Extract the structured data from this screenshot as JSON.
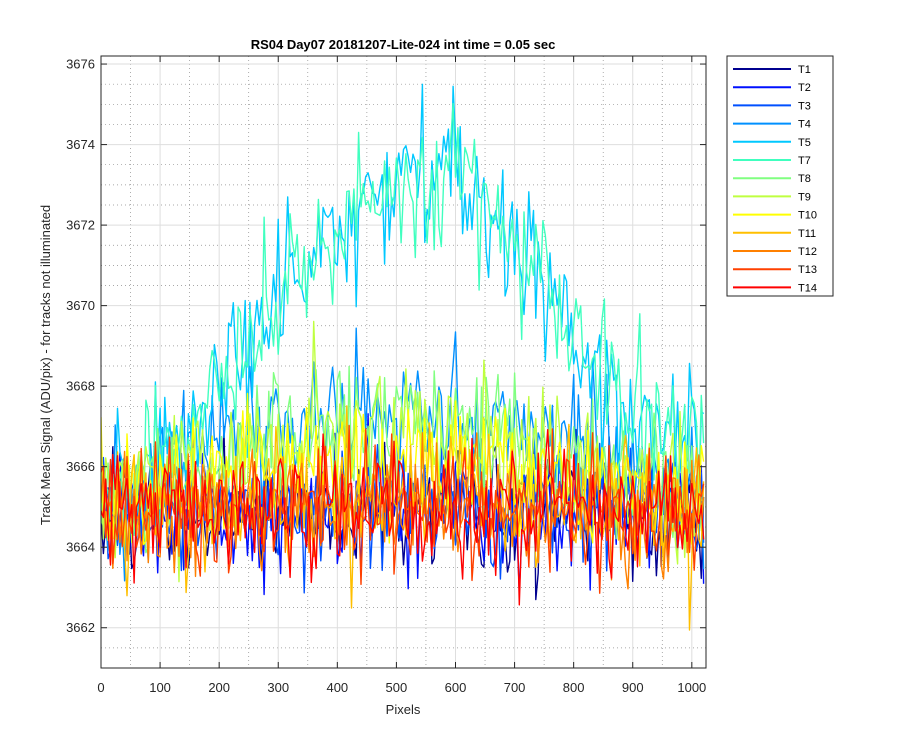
{
  "chart_data": {
    "type": "line",
    "title": "RS04 Day07 20181207-Lite-024 int time = 0.05 sec",
    "xlabel": "Pixels",
    "ylabel": "Track Mean Signal (ADU/pix) - for tracks not illuminated",
    "xlim": [
      0,
      1024
    ],
    "ylim": [
      3661,
      3676.2
    ],
    "x_ticks": [
      0,
      100,
      200,
      300,
      400,
      500,
      600,
      700,
      800,
      900,
      1000
    ],
    "y_ticks": [
      3662,
      3664,
      3666,
      3668,
      3670,
      3672,
      3674,
      3676
    ],
    "grid": true,
    "minor_grid": true,
    "legend_position": "outside-top-right",
    "x_sampling": "0 to 1023 every 4 pixels",
    "series": [
      {
        "name": "T1",
        "color": "#00008f",
        "mean": [
          [
            0,
            3664.9
          ],
          [
            1023,
            3664.9
          ]
        ],
        "noise": 0.9
      },
      {
        "name": "T2",
        "color": "#0010ff",
        "mean": [
          [
            0,
            3664.9
          ],
          [
            1023,
            3664.9
          ]
        ],
        "noise": 0.9
      },
      {
        "name": "T3",
        "color": "#0050ff",
        "mean": [
          [
            0,
            3665.0
          ],
          [
            1023,
            3665.0
          ]
        ],
        "noise": 0.9
      },
      {
        "name": "T4",
        "color": "#0090ff",
        "mean": [
          [
            0,
            3665.0
          ],
          [
            150,
            3666.0
          ],
          [
            250,
            3667.0
          ],
          [
            500,
            3667.3
          ],
          [
            750,
            3667.0
          ],
          [
            900,
            3666.0
          ],
          [
            1023,
            3665.2
          ]
        ],
        "noise": 0.9
      },
      {
        "name": "T5",
        "color": "#00c8ff",
        "mean": [
          [
            0,
            3665.2
          ],
          [
            130,
            3666.6
          ],
          [
            250,
            3669.0
          ],
          [
            350,
            3671.3
          ],
          [
            450,
            3672.8
          ],
          [
            520,
            3673.3
          ],
          [
            600,
            3673.1
          ],
          [
            700,
            3671.6
          ],
          [
            800,
            3669.0
          ],
          [
            900,
            3667.3
          ],
          [
            1023,
            3666.5
          ]
        ],
        "noise": 1.0
      },
      {
        "name": "T7",
        "color": "#40ffbf",
        "mean": [
          [
            0,
            3665.2
          ],
          [
            130,
            3666.6
          ],
          [
            250,
            3669.0
          ],
          [
            350,
            3671.3
          ],
          [
            450,
            3672.8
          ],
          [
            520,
            3673.3
          ],
          [
            600,
            3673.1
          ],
          [
            700,
            3671.6
          ],
          [
            800,
            3669.0
          ],
          [
            900,
            3667.3
          ],
          [
            1023,
            3666.5
          ]
        ],
        "noise": 1.0
      },
      {
        "name": "T8",
        "color": "#80ff80",
        "mean": [
          [
            0,
            3665.2
          ],
          [
            150,
            3665.9
          ],
          [
            300,
            3666.8
          ],
          [
            500,
            3667.1
          ],
          [
            700,
            3666.7
          ],
          [
            900,
            3665.8
          ],
          [
            1023,
            3665.3
          ]
        ],
        "noise": 0.9
      },
      {
        "name": "T9",
        "color": "#bfff40",
        "mean": [
          [
            0,
            3665.1
          ],
          [
            150,
            3665.8
          ],
          [
            300,
            3666.6
          ],
          [
            500,
            3666.9
          ],
          [
            700,
            3666.5
          ],
          [
            900,
            3665.7
          ],
          [
            1023,
            3665.2
          ]
        ],
        "noise": 0.9
      },
      {
        "name": "T10",
        "color": "#ffff00",
        "mean": [
          [
            0,
            3665.1
          ],
          [
            300,
            3666.0
          ],
          [
            500,
            3666.1
          ],
          [
            750,
            3665.9
          ],
          [
            1023,
            3665.1
          ]
        ],
        "noise": 0.9
      },
      {
        "name": "T11",
        "color": "#ffbf00",
        "mean": [
          [
            0,
            3665.0
          ],
          [
            500,
            3665.3
          ],
          [
            1023,
            3665.0
          ]
        ],
        "noise": 0.9
      },
      {
        "name": "T12",
        "color": "#ff8000",
        "mean": [
          [
            0,
            3664.9
          ],
          [
            1023,
            3664.9
          ]
        ],
        "noise": 0.9
      },
      {
        "name": "T13",
        "color": "#ff4000",
        "mean": [
          [
            0,
            3664.9
          ],
          [
            1023,
            3664.9
          ]
        ],
        "noise": 0.9
      },
      {
        "name": "T14",
        "color": "#ff0000",
        "mean": [
          [
            0,
            3664.9
          ],
          [
            1023,
            3664.9
          ]
        ],
        "noise": 0.9
      }
    ]
  }
}
